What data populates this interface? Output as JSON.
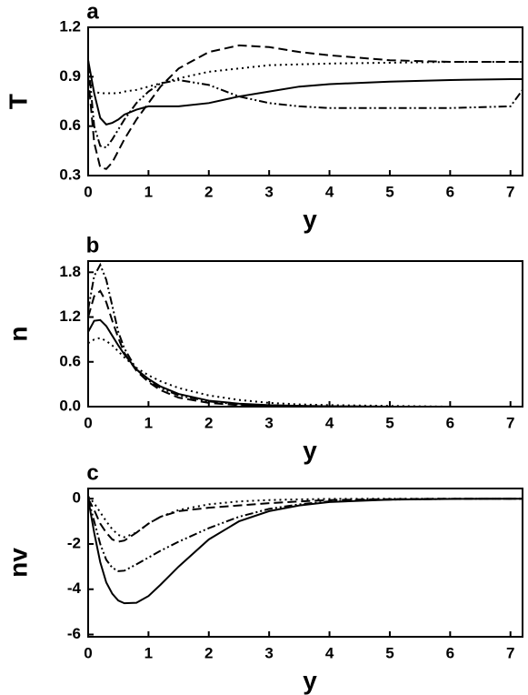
{
  "chart_data": [
    {
      "type": "line",
      "panel_label": "a",
      "x_label": "y",
      "y_label": "T",
      "x": [
        0,
        0.1,
        0.2,
        0.3,
        0.4,
        0.5,
        0.6,
        0.8,
        1,
        1.2,
        1.5,
        2,
        2.5,
        3,
        3.5,
        4,
        5,
        6,
        7,
        7.2
      ],
      "xlim": [
        0,
        7.2
      ],
      "xticks": [
        0,
        1,
        2,
        3,
        4,
        5,
        6,
        7
      ],
      "ylim": [
        0.3,
        1.2
      ],
      "yticks": [
        0.3,
        0.6,
        0.9,
        1.2
      ],
      "series": [
        {
          "color": "#000000",
          "dash": "solid",
          "values": [
            1.0,
            0.8,
            0.65,
            0.61,
            0.62,
            0.64,
            0.67,
            0.7,
            0.72,
            0.72,
            0.72,
            0.74,
            0.78,
            0.81,
            0.84,
            0.855,
            0.87,
            0.88,
            0.885,
            0.885
          ]
        },
        {
          "color": "#000000",
          "dash": "dashed",
          "values": [
            0.9,
            0.5,
            0.35,
            0.34,
            0.38,
            0.45,
            0.52,
            0.64,
            0.74,
            0.84,
            0.95,
            1.05,
            1.09,
            1.08,
            1.05,
            1.03,
            1.0,
            0.99,
            0.99,
            0.99
          ]
        },
        {
          "color": "#000000",
          "dash": "dotted",
          "values": [
            0.88,
            0.81,
            0.8,
            0.8,
            0.8,
            0.8,
            0.81,
            0.82,
            0.84,
            0.86,
            0.89,
            0.93,
            0.95,
            0.97,
            0.975,
            0.98,
            0.985,
            0.99,
            0.99,
            0.99
          ]
        },
        {
          "color": "#000000",
          "dash": "dash-dot-dot",
          "values": [
            1.0,
            0.6,
            0.48,
            0.47,
            0.52,
            0.58,
            0.64,
            0.74,
            0.81,
            0.86,
            0.88,
            0.85,
            0.78,
            0.74,
            0.72,
            0.71,
            0.71,
            0.71,
            0.72,
            0.82
          ]
        }
      ]
    },
    {
      "type": "line",
      "panel_label": "b",
      "x_label": "y",
      "y_label": "n",
      "x": [
        0,
        0.1,
        0.2,
        0.3,
        0.4,
        0.5,
        0.6,
        0.8,
        1,
        1.2,
        1.5,
        2,
        2.5,
        3,
        3.5,
        4,
        5,
        6,
        7,
        7.2
      ],
      "xlim": [
        0,
        7.2
      ],
      "xticks": [
        0,
        1,
        2,
        3,
        4,
        5,
        6,
        7
      ],
      "ylim": [
        0,
        1.95
      ],
      "yticks": [
        {
          "value": 0,
          "label": "0.0"
        },
        0.6,
        1.2,
        1.8
      ],
      "series": [
        {
          "color": "#000000",
          "dash": "solid",
          "values": [
            1.0,
            1.15,
            1.16,
            1.08,
            0.95,
            0.82,
            0.7,
            0.5,
            0.37,
            0.27,
            0.17,
            0.08,
            0.04,
            0.02,
            0.01,
            0.005,
            0,
            0,
            0,
            0
          ]
        },
        {
          "color": "#000000",
          "dash": "dashed",
          "values": [
            1.2,
            1.48,
            1.55,
            1.4,
            1.15,
            0.92,
            0.72,
            0.48,
            0.33,
            0.22,
            0.12,
            0.05,
            0.02,
            0.01,
            0.005,
            0,
            0,
            0,
            0,
            0
          ]
        },
        {
          "color": "#000000",
          "dash": "dotted",
          "values": [
            0.85,
            0.9,
            0.92,
            0.88,
            0.82,
            0.74,
            0.66,
            0.52,
            0.42,
            0.34,
            0.25,
            0.15,
            0.09,
            0.05,
            0.03,
            0.02,
            0.01,
            0,
            0,
            0
          ]
        },
        {
          "color": "#000000",
          "dash": "dash-dot-dot",
          "values": [
            1.3,
            1.75,
            1.9,
            1.7,
            1.35,
            1.0,
            0.78,
            0.5,
            0.35,
            0.25,
            0.15,
            0.07,
            0.03,
            0.015,
            0.01,
            0.005,
            0,
            0,
            0,
            0
          ]
        }
      ]
    },
    {
      "type": "line",
      "panel_label": "c",
      "x_label": "y",
      "y_label": "nv",
      "x": [
        0,
        0.1,
        0.2,
        0.3,
        0.4,
        0.5,
        0.6,
        0.8,
        1,
        1.2,
        1.5,
        2,
        2.5,
        3,
        3.5,
        4,
        5,
        6,
        7,
        7.2
      ],
      "xlim": [
        0,
        7.2
      ],
      "xticks": [
        0,
        1,
        2,
        3,
        4,
        5,
        6,
        7
      ],
      "ylim": [
        -6.1,
        0.45
      ],
      "yticks": [
        0,
        -2,
        -4,
        -6
      ],
      "series": [
        {
          "color": "#000000",
          "dash": "solid",
          "values": [
            0,
            -1.5,
            -2.8,
            -3.7,
            -4.2,
            -4.5,
            -4.62,
            -4.6,
            -4.3,
            -3.8,
            -3.0,
            -1.8,
            -1.0,
            -0.55,
            -0.3,
            -0.15,
            -0.04,
            -0.01,
            0,
            0
          ]
        },
        {
          "color": "#000000",
          "dash": "dashed",
          "values": [
            0,
            -0.5,
            -1.1,
            -1.5,
            -1.8,
            -1.9,
            -1.85,
            -1.5,
            -1.1,
            -0.8,
            -0.55,
            -0.4,
            -0.3,
            -0.2,
            -0.12,
            -0.06,
            -0.02,
            0,
            0,
            0
          ]
        },
        {
          "color": "#000000",
          "dash": "dotted",
          "values": [
            0.1,
            -0.2,
            -0.6,
            -1.0,
            -1.35,
            -1.6,
            -1.7,
            -1.5,
            -1.1,
            -0.8,
            -0.5,
            -0.25,
            -0.12,
            -0.06,
            -0.03,
            -0.01,
            0,
            0,
            0,
            0
          ]
        },
        {
          "color": "#000000",
          "dash": "dash-dot-dot",
          "values": [
            0,
            -1.0,
            -2.0,
            -2.7,
            -3.05,
            -3.2,
            -3.18,
            -2.9,
            -2.6,
            -2.3,
            -1.9,
            -1.3,
            -0.8,
            -0.45,
            -0.25,
            -0.12,
            -0.04,
            -0.01,
            0,
            0
          ]
        }
      ]
    }
  ]
}
